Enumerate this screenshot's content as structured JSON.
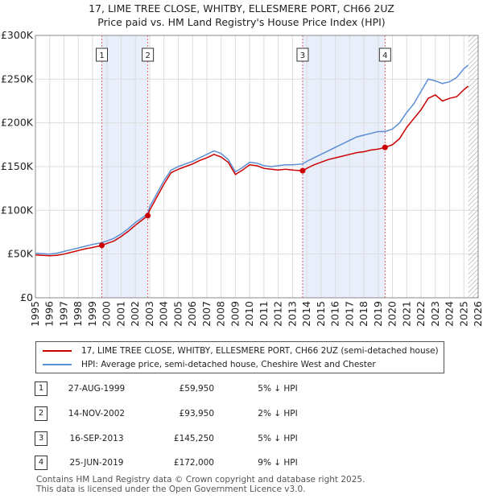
{
  "chart_data": {
    "type": "line",
    "title": "17, LIME TREE CLOSE, WHITBY, ELLESMERE PORT, CH66 2UZ",
    "subtitle": "Price paid vs. HM Land Registry's House Price Index (HPI)",
    "xlim": [
      1995,
      2026
    ],
    "ylim": [
      0,
      300000
    ],
    "x_ticks": [
      "1995",
      "1996",
      "1997",
      "1998",
      "1999",
      "2000",
      "2001",
      "2002",
      "2003",
      "2004",
      "2005",
      "2006",
      "2007",
      "2008",
      "2009",
      "2010",
      "2011",
      "2012",
      "2013",
      "2014",
      "2015",
      "2016",
      "2017",
      "2018",
      "2019",
      "2020",
      "2021",
      "2022",
      "2023",
      "2024",
      "2025",
      "2026"
    ],
    "y_ticks": [
      {
        "value": 0,
        "label": "£0"
      },
      {
        "value": 50000,
        "label": "£50K"
      },
      {
        "value": 100000,
        "label": "£100K"
      },
      {
        "value": 150000,
        "label": "£150K"
      },
      {
        "value": 200000,
        "label": "£200K"
      },
      {
        "value": 250000,
        "label": "£250K"
      },
      {
        "value": 300000,
        "label": "£300K"
      }
    ],
    "series": [
      {
        "name": "17, LIME TREE CLOSE, WHITBY, ELLESMERE PORT, CH66 2UZ (semi-detached house)",
        "color": "#cc0000",
        "points": [
          [
            1995.0,
            49000
          ],
          [
            1995.5,
            48500
          ],
          [
            1996.0,
            48000
          ],
          [
            1996.5,
            48500
          ],
          [
            1997.0,
            50000
          ],
          [
            1997.5,
            52000
          ],
          [
            1998.0,
            54000
          ],
          [
            1998.5,
            56000
          ],
          [
            1999.0,
            57500
          ],
          [
            1999.65,
            59950
          ],
          [
            2000.0,
            62000
          ],
          [
            2000.5,
            65000
          ],
          [
            2001.0,
            70000
          ],
          [
            2001.5,
            76000
          ],
          [
            2002.0,
            83000
          ],
          [
            2002.87,
            93950
          ],
          [
            2003.0,
            100000
          ],
          [
            2003.5,
            115000
          ],
          [
            2004.0,
            130000
          ],
          [
            2004.5,
            143000
          ],
          [
            2005.0,
            147000
          ],
          [
            2005.5,
            150000
          ],
          [
            2006.0,
            153000
          ],
          [
            2006.5,
            157000
          ],
          [
            2007.0,
            160000
          ],
          [
            2007.5,
            164000
          ],
          [
            2008.0,
            161000
          ],
          [
            2008.5,
            155000
          ],
          [
            2009.0,
            141000
          ],
          [
            2009.5,
            146000
          ],
          [
            2010.0,
            152000
          ],
          [
            2010.5,
            151000
          ],
          [
            2011.0,
            148000
          ],
          [
            2011.5,
            147000
          ],
          [
            2012.0,
            146000
          ],
          [
            2012.5,
            147000
          ],
          [
            2013.0,
            146000
          ],
          [
            2013.71,
            145250
          ],
          [
            2014.0,
            148000
          ],
          [
            2014.5,
            152000
          ],
          [
            2015.0,
            155000
          ],
          [
            2015.5,
            158000
          ],
          [
            2016.0,
            160000
          ],
          [
            2016.5,
            162000
          ],
          [
            2017.0,
            164000
          ],
          [
            2017.5,
            166000
          ],
          [
            2018.0,
            167000
          ],
          [
            2018.5,
            169000
          ],
          [
            2019.0,
            170000
          ],
          [
            2019.48,
            172000
          ],
          [
            2020.0,
            175000
          ],
          [
            2020.5,
            182000
          ],
          [
            2021.0,
            195000
          ],
          [
            2021.5,
            205000
          ],
          [
            2022.0,
            215000
          ],
          [
            2022.5,
            228000
          ],
          [
            2023.0,
            232000
          ],
          [
            2023.5,
            225000
          ],
          [
            2024.0,
            228000
          ],
          [
            2024.5,
            230000
          ],
          [
            2025.0,
            238000
          ],
          [
            2025.3,
            242000
          ]
        ]
      },
      {
        "name": "HPI: Average price, semi-detached house, Cheshire West and Chester",
        "color": "#5b8fd4",
        "points": [
          [
            1995.0,
            51000
          ],
          [
            1995.5,
            50500
          ],
          [
            1996.0,
            50000
          ],
          [
            1996.5,
            51000
          ],
          [
            1997.0,
            53000
          ],
          [
            1997.5,
            55000
          ],
          [
            1998.0,
            57000
          ],
          [
            1998.5,
            59000
          ],
          [
            1999.0,
            61000
          ],
          [
            1999.65,
            63000
          ],
          [
            2000.0,
            65000
          ],
          [
            2000.5,
            68000
          ],
          [
            2001.0,
            73000
          ],
          [
            2001.5,
            79000
          ],
          [
            2002.0,
            86000
          ],
          [
            2002.87,
            96000
          ],
          [
            2003.0,
            104000
          ],
          [
            2003.5,
            119000
          ],
          [
            2004.0,
            134000
          ],
          [
            2004.5,
            146000
          ],
          [
            2005.0,
            150000
          ],
          [
            2005.5,
            153000
          ],
          [
            2006.0,
            156000
          ],
          [
            2006.5,
            160000
          ],
          [
            2007.0,
            164000
          ],
          [
            2007.5,
            168000
          ],
          [
            2008.0,
            165000
          ],
          [
            2008.5,
            158000
          ],
          [
            2009.0,
            144000
          ],
          [
            2009.5,
            149000
          ],
          [
            2010.0,
            155000
          ],
          [
            2010.5,
            154000
          ],
          [
            2011.0,
            151000
          ],
          [
            2011.5,
            150000
          ],
          [
            2012.0,
            151000
          ],
          [
            2012.5,
            152000
          ],
          [
            2013.0,
            152000
          ],
          [
            2013.71,
            153000
          ],
          [
            2014.0,
            156000
          ],
          [
            2014.5,
            160000
          ],
          [
            2015.0,
            164000
          ],
          [
            2015.5,
            168000
          ],
          [
            2016.0,
            172000
          ],
          [
            2016.5,
            176000
          ],
          [
            2017.0,
            180000
          ],
          [
            2017.5,
            184000
          ],
          [
            2018.0,
            186000
          ],
          [
            2018.5,
            188000
          ],
          [
            2019.0,
            190000
          ],
          [
            2019.48,
            190000
          ],
          [
            2020.0,
            193000
          ],
          [
            2020.5,
            200000
          ],
          [
            2021.0,
            212000
          ],
          [
            2021.5,
            222000
          ],
          [
            2022.0,
            236000
          ],
          [
            2022.5,
            250000
          ],
          [
            2023.0,
            248000
          ],
          [
            2023.5,
            245000
          ],
          [
            2024.0,
            247000
          ],
          [
            2024.5,
            252000
          ],
          [
            2025.0,
            262000
          ],
          [
            2025.3,
            266000
          ]
        ]
      }
    ],
    "sales": [
      {
        "n": "1",
        "x": 1999.65,
        "price": 59950,
        "date": "27-AUG-1999",
        "price_label": "£59,950",
        "hpi": "5% ↓ HPI"
      },
      {
        "n": "2",
        "x": 2002.87,
        "price": 93950,
        "date": "14-NOV-2002",
        "price_label": "£93,950",
        "hpi": "2% ↓ HPI"
      },
      {
        "n": "3",
        "x": 2013.71,
        "price": 145250,
        "date": "16-SEP-2013",
        "price_label": "£145,250",
        "hpi": "5% ↓ HPI"
      },
      {
        "n": "4",
        "x": 2019.48,
        "price": 172000,
        "date": "25-JUN-2019",
        "price_label": "£172,000",
        "hpi": "9% ↓ HPI"
      }
    ],
    "shaded_periods": [
      [
        1999.65,
        2002.87
      ],
      [
        2013.71,
        2019.48
      ]
    ],
    "future_hatch_from": 2025.3
  },
  "legend": {
    "property_label": "17, LIME TREE CLOSE, WHITBY, ELLESMERE PORT, CH66 2UZ (semi-detached house)",
    "hpi_label": "HPI: Average price, semi-detached house, Cheshire West and Chester"
  },
  "footer": {
    "line1": "Contains HM Land Registry data © Crown copyright and database right 2025.",
    "line2": "This data is licensed under the Open Government Licence v3.0."
  }
}
